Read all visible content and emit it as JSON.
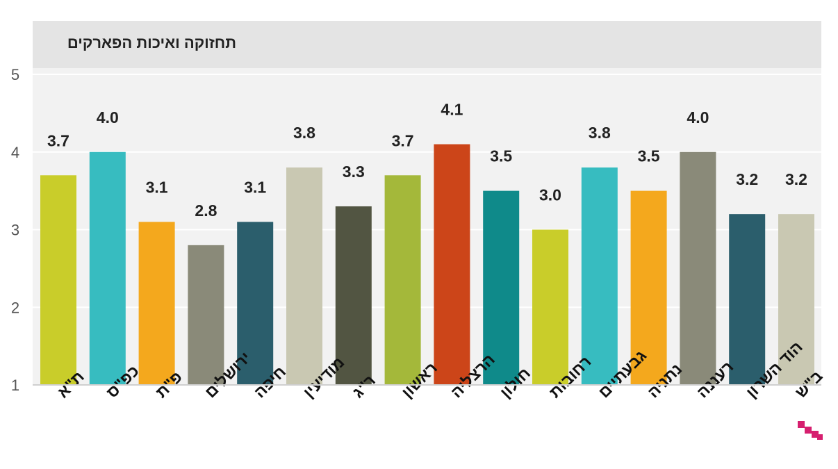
{
  "chart_data": {
    "type": "bar",
    "title": "תחזוקה ואיכות הפארקים",
    "categories": [
      "ת\"א",
      "כפ\"ס",
      "פ\"ת",
      "ירושלים",
      "חיפה",
      "מודיעין",
      "ר\"ג",
      "ראשון",
      "הרצליה",
      "חולון",
      "רחובות",
      "גבעתיים",
      "נתניה",
      "רעננה",
      "הוד השרון",
      "ב\"ש"
    ],
    "values": [
      3.7,
      4.0,
      3.1,
      2.8,
      3.1,
      3.8,
      3.3,
      3.7,
      4.1,
      3.5,
      3.0,
      3.8,
      3.5,
      4.0,
      3.2,
      3.2
    ],
    "value_labels": [
      "3.7",
      "4.0",
      "3.1",
      "2.8",
      "3.1",
      "3.8",
      "3.3",
      "3.7",
      "4.1",
      "3.5",
      "3.0",
      "3.8",
      "3.5",
      "4.0",
      "3.2",
      "3.2"
    ],
    "colors": [
      "#c9cd2a",
      "#37bcc0",
      "#f4a81d",
      "#8a8a79",
      "#2b5e6c",
      "#c9c8b2",
      "#525542",
      "#a4b83a",
      "#cc4519",
      "#0f8a8a",
      "#c9cd2a",
      "#37bcc0",
      "#f4a81d",
      "#8a8a79",
      "#2b5e6c",
      "#c9c8b2"
    ],
    "ylim": [
      1,
      5
    ],
    "yticks": [
      1,
      2,
      3,
      4,
      5
    ],
    "xlabel": "",
    "ylabel": "",
    "grid": true,
    "legend": "none",
    "plot_background": "#f2f2f2",
    "title_background": "#e4e4e4"
  }
}
